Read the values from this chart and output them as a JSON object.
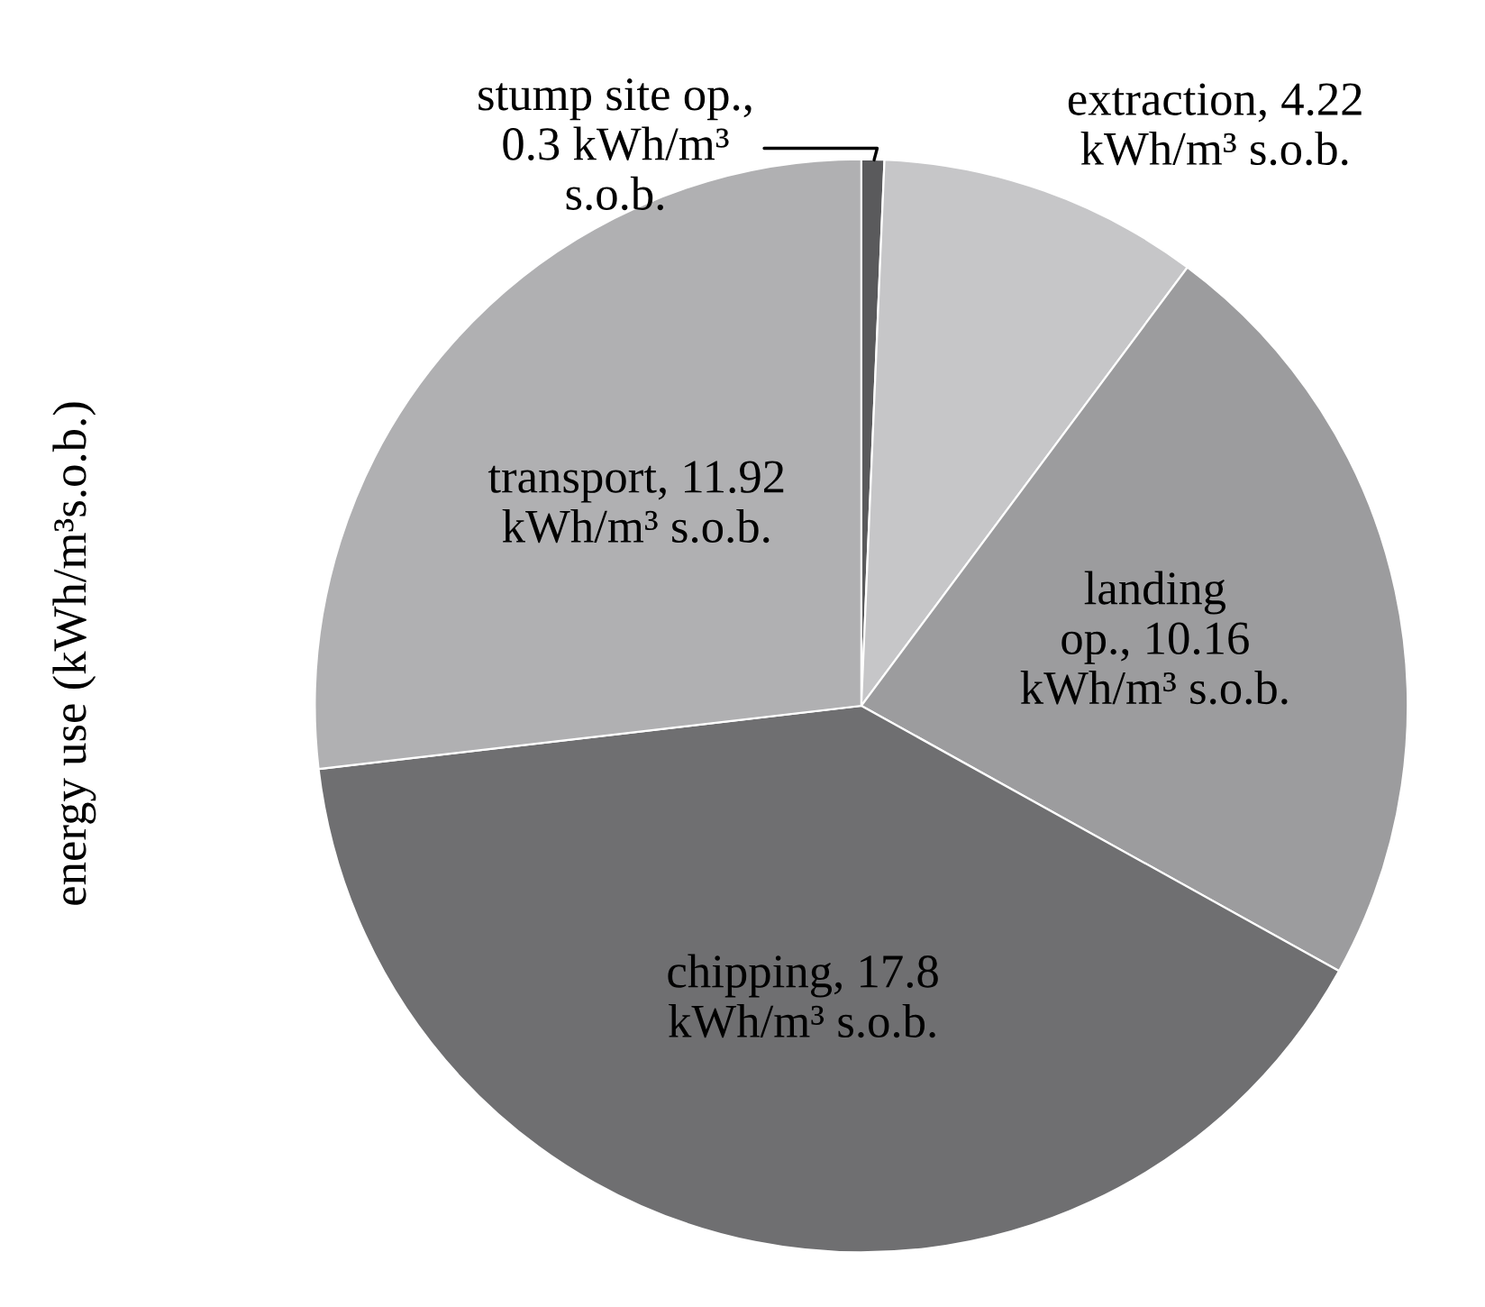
{
  "chart_data": {
    "type": "pie",
    "ylabel": "energy use (kWh/m³s.o.b.)",
    "categories": [
      "stump site op.,\n0.3 kWh/m³\ns.o.b.",
      "extraction, 4.22\nkWh/m³ s.o.b.",
      "landing\nop., 10.16\nkWh/m³ s.o.b.",
      "chipping, 17.8\nkWh/m³ s.o.b.",
      "transport, 11.92\nkWh/m³ s.o.b."
    ],
    "values": [
      0.3,
      4.22,
      10.16,
      17.8,
      11.92
    ],
    "colors": [
      "#5a5a5c",
      "#c6c6c8",
      "#9c9c9e",
      "#6f6f71",
      "#b0b0b2"
    ],
    "legend": false
  }
}
